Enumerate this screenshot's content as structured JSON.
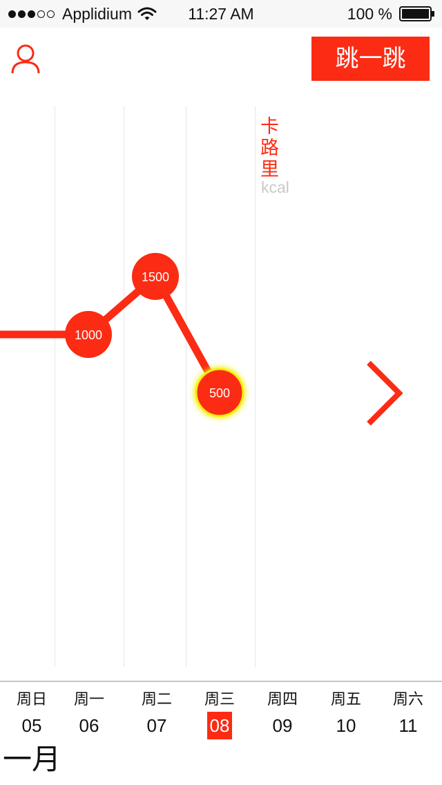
{
  "status_bar": {
    "carrier": "Applidium",
    "time": "11:27 AM",
    "battery": "100 %"
  },
  "header": {
    "user_icon": "user-icon",
    "jump_button_label": "跳一跳"
  },
  "chart_data": {
    "type": "line",
    "unit_label": "卡路里",
    "unit_sub": "kcal",
    "points": [
      {
        "day": "周一",
        "value": 1000
      },
      {
        "day": "周二",
        "value": 1500
      },
      {
        "day": "周三",
        "value": 500
      }
    ],
    "point_labels": [
      "1000",
      "1500",
      "500"
    ],
    "highlighted_day": "周三",
    "colors": {
      "line": "#fb2b14",
      "highlight": "#f4f00a",
      "grid": "#e6e6e6"
    }
  },
  "week": {
    "days": [
      {
        "name": "周日",
        "num": "05"
      },
      {
        "name": "周一",
        "num": "06"
      },
      {
        "name": "周二",
        "num": "07"
      },
      {
        "name": "周三",
        "num": "08",
        "selected": true
      },
      {
        "name": "周四",
        "num": "09"
      },
      {
        "name": "周五",
        "num": "10"
      },
      {
        "name": "周六",
        "num": "11"
      }
    ],
    "month": "一月"
  },
  "icons": {
    "next": "chevron-right-icon",
    "wifi": "wifi-icon",
    "battery": "battery-icon"
  }
}
